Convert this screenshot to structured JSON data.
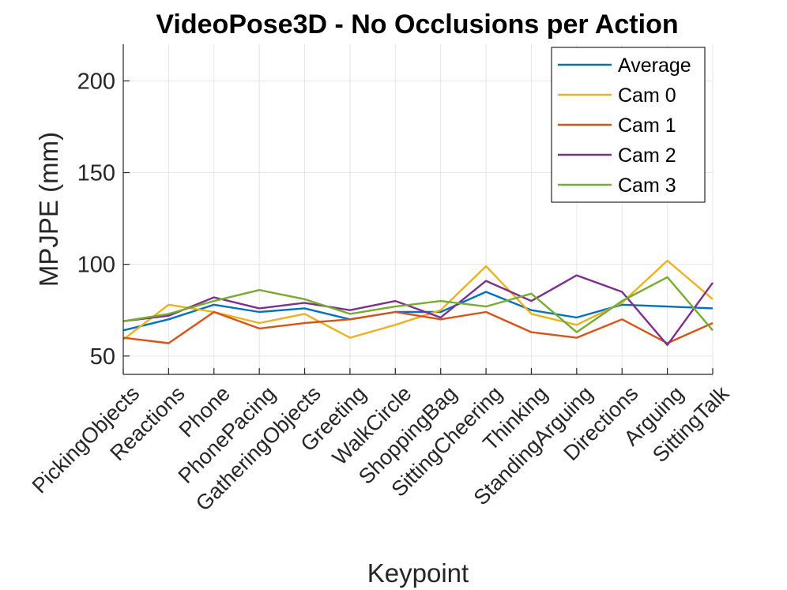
{
  "chart_data": {
    "type": "line",
    "title": "VideoPose3D - No Occlusions per Action",
    "xlabel": "Keypoint",
    "ylabel": "MPJPE (mm)",
    "ylim": [
      40,
      220
    ],
    "yticks": [
      50,
      100,
      150,
      200
    ],
    "grid": true,
    "legend_position": "top-right",
    "categories": [
      "PickingObjects",
      "Reactions",
      "Phone",
      "PhonePacing",
      "GatheringObjects",
      "Greeting",
      "WalkCircle",
      "ShoppingBag",
      "SittingCheering",
      "Thinking",
      "StandingArguing",
      "Directions",
      "Arguing",
      "SittingTalk"
    ],
    "series": [
      {
        "name": "Average",
        "color": "#0072BD",
        "values": [
          64,
          70,
          78,
          74,
          76,
          70,
          74,
          74,
          85,
          75,
          71,
          78,
          77,
          76
        ]
      },
      {
        "name": "Cam 0",
        "color": "#EDB120",
        "values": [
          59,
          78,
          74,
          68,
          73,
          60,
          67,
          75,
          99,
          73,
          67,
          79,
          102,
          81
        ]
      },
      {
        "name": "Cam 1",
        "color": "#D95319",
        "values": [
          60,
          57,
          74,
          65,
          68,
          70,
          74,
          70,
          74,
          63,
          60,
          70,
          57,
          68
        ]
      },
      {
        "name": "Cam 2",
        "color": "#7E2F8E",
        "values": [
          69,
          72,
          82,
          76,
          79,
          75,
          80,
          71,
          91,
          80,
          94,
          85,
          56,
          90
        ]
      },
      {
        "name": "Cam 3",
        "color": "#77AC30",
        "values": [
          69,
          73,
          80,
          86,
          81,
          73,
          77,
          80,
          77,
          84,
          63,
          80,
          93,
          64
        ]
      }
    ]
  }
}
